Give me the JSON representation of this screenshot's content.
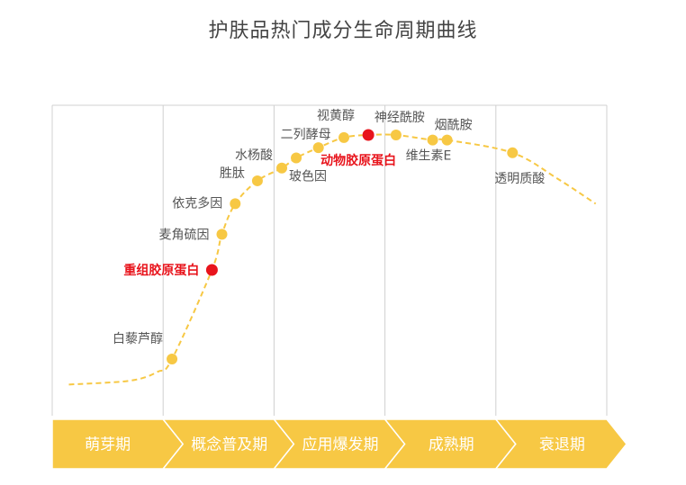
{
  "chart_data": {
    "type": "line",
    "title": "护肤品热门成分生命周期曲线",
    "stages": [
      "萌芽期",
      "概念普及期",
      "应用爆发期",
      "成熟期",
      "衰退期"
    ],
    "points": [
      {
        "label": "白藜芦醇",
        "x": 1.08,
        "y": 0.12,
        "highlight": false
      },
      {
        "label": "重组胶原蛋白",
        "x": 1.44,
        "y": 0.47,
        "highlight": true
      },
      {
        "label": "麦角硫因",
        "x": 1.53,
        "y": 0.61,
        "highlight": false
      },
      {
        "label": "依克多因",
        "x": 1.65,
        "y": 0.73,
        "highlight": false
      },
      {
        "label": "胜肽",
        "x": 1.85,
        "y": 0.82,
        "highlight": false
      },
      {
        "label": "水杨酸",
        "x": 2.07,
        "y": 0.87,
        "highlight": false
      },
      {
        "label": "玻色因",
        "x": 2.2,
        "y": 0.91,
        "highlight": false
      },
      {
        "label": "二列酵母",
        "x": 2.4,
        "y": 0.95,
        "highlight": false
      },
      {
        "label": "视黄醇",
        "x": 2.63,
        "y": 0.99,
        "highlight": false
      },
      {
        "label": "动物胶原蛋白",
        "x": 2.85,
        "y": 1.0,
        "highlight": true
      },
      {
        "label": "神经酰胺",
        "x": 3.1,
        "y": 1.0,
        "highlight": false
      },
      {
        "label": "维生素E",
        "x": 3.43,
        "y": 0.98,
        "highlight": false
      },
      {
        "label": "烟酰胺",
        "x": 3.56,
        "y": 0.98,
        "highlight": false
      },
      {
        "label": "透明质酸",
        "x": 4.15,
        "y": 0.93,
        "highlight": false
      }
    ],
    "colors": {
      "curve": "#f7c844",
      "point": "#f7c844",
      "highlight_point": "#e8141c",
      "band": "#f7c844",
      "grid": "#d0d0d0"
    }
  }
}
